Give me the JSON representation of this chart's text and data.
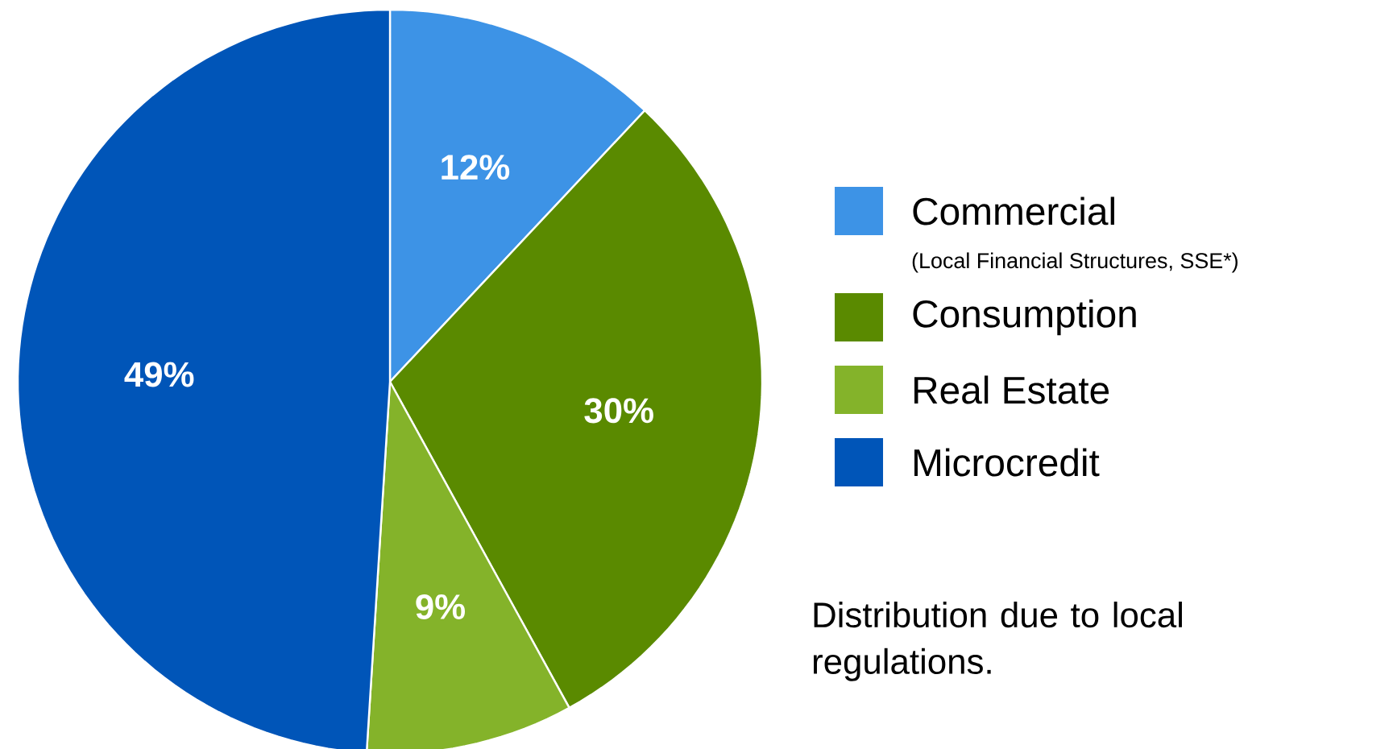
{
  "chart_data": {
    "type": "pie",
    "categories": [
      "Commercial",
      "Consumption",
      "Real Estate",
      "Microcredit"
    ],
    "values": [
      12,
      30,
      9,
      49
    ],
    "value_labels": [
      "12%",
      "30%",
      "9%",
      "49%"
    ],
    "colors": [
      "#3d93e6",
      "#5a8a00",
      "#84b32a",
      "#0055b8"
    ],
    "legend": "right",
    "annotations": [
      "(Local Financial Structures, SSE*)",
      "Distribution due to local regulations."
    ]
  }
}
